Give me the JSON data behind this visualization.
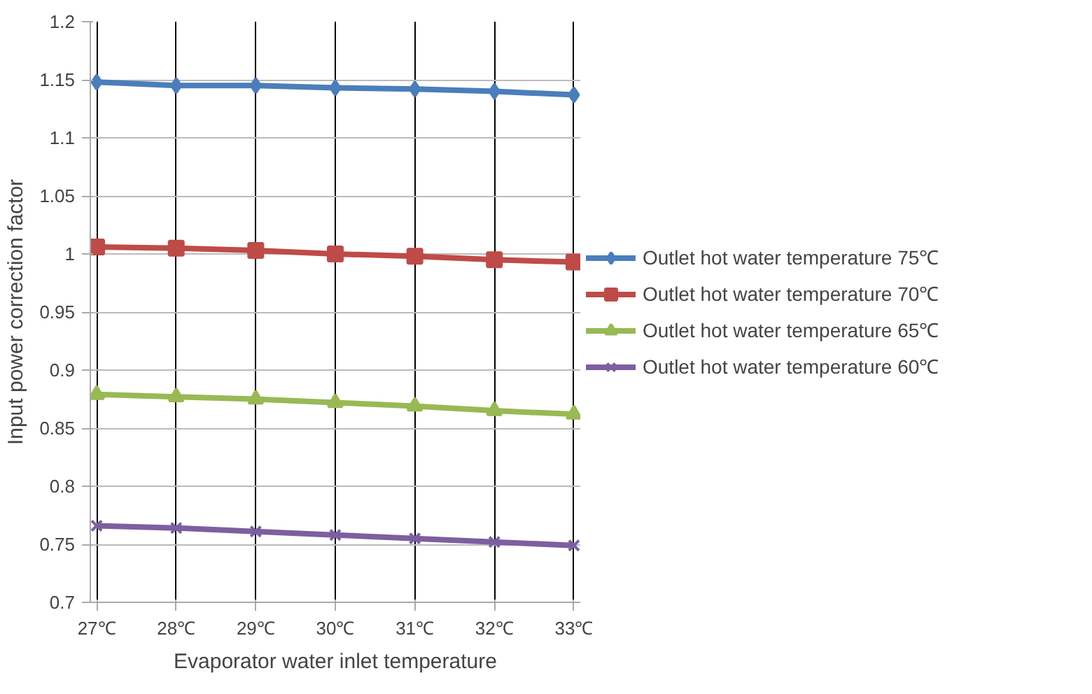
{
  "chart_data": {
    "type": "line",
    "xlabel": "Evaporator water inlet temperature",
    "ylabel": "Input power correction factor",
    "categories": [
      "27℃",
      "28℃",
      "29℃",
      "30℃",
      "31℃",
      "32℃",
      "33℃"
    ],
    "series": [
      {
        "name": "Outlet hot water temperature 75℃",
        "color": "#4a7ebb",
        "marker": "diamond",
        "values": [
          1.148,
          1.145,
          1.145,
          1.143,
          1.142,
          1.14,
          1.137
        ]
      },
      {
        "name": "Outlet hot water temperature 70℃",
        "color": "#be4b48",
        "marker": "square",
        "values": [
          1.006,
          1.005,
          1.003,
          1.0,
          0.998,
          0.995,
          0.993
        ]
      },
      {
        "name": "Outlet hot water temperature 65℃",
        "color": "#98b954",
        "marker": "triangle",
        "values": [
          0.879,
          0.877,
          0.875,
          0.872,
          0.869,
          0.865,
          0.862
        ]
      },
      {
        "name": "Outlet hot water temperature 60℃",
        "color": "#7d5fa0",
        "marker": "cross",
        "values": [
          0.766,
          0.764,
          0.761,
          0.758,
          0.755,
          0.752,
          0.749
        ]
      }
    ],
    "ylim": [
      0.7,
      1.2
    ],
    "yticks": [
      0.7,
      0.75,
      0.8,
      0.85,
      0.9,
      0.95,
      1,
      1.05,
      1.1,
      1.15,
      1.2
    ],
    "grid": true,
    "legend": "right",
    "line_style": "solid"
  }
}
